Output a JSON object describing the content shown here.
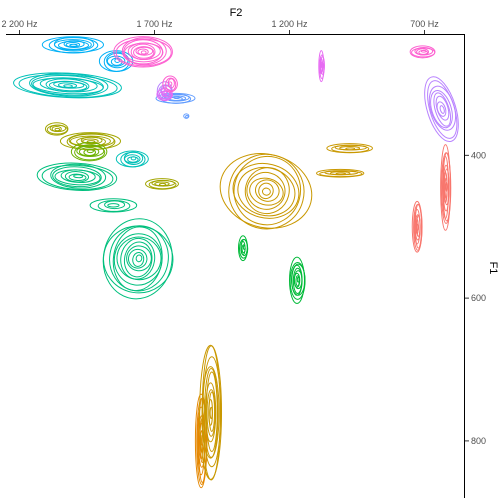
{
  "chart_data": {
    "type": "contour",
    "title": "",
    "x_axis": {
      "label": "F2",
      "position": "top",
      "reversed": true,
      "range": [
        2250,
        550
      ],
      "ticks": [
        {
          "value": 2200,
          "label": "2 200 Hz"
        },
        {
          "value": 1700,
          "label": "1 700 Hz"
        },
        {
          "value": 1200,
          "label": "1 200 Hz"
        },
        {
          "value": 700,
          "label": "700 Hz"
        }
      ]
    },
    "y_axis": {
      "label": "F1",
      "position": "right",
      "reversed": true,
      "range": [
        230,
        880
      ],
      "ticks": [
        {
          "value": 400,
          "label": "400"
        },
        {
          "value": 600,
          "label": "600"
        },
        {
          "value": 800,
          "label": "800"
        }
      ]
    },
    "grid": false,
    "legend": "none",
    "series": [
      {
        "color": "#F8766D",
        "clusters": [
          {
            "f2": 620,
            "f1": 445,
            "sx": 18,
            "sy": 60,
            "levels": 9,
            "rot": 0
          },
          {
            "f2": 725,
            "f1": 500,
            "sx": 17,
            "sy": 38,
            "levels": 8,
            "rot": 0
          }
        ]
      },
      {
        "color": "#E58700",
        "clusters": [
          {
            "f2": 1525,
            "f1": 800,
            "sx": 20,
            "sy": 70,
            "levels": 9,
            "rot": 0
          }
        ]
      },
      {
        "color": "#C99800",
        "clusters": [
          {
            "f2": 1285,
            "f1": 450,
            "sx": 160,
            "sy": 55,
            "levels": 11,
            "rot": 0.25
          },
          {
            "f2": 1490,
            "f1": 760,
            "sx": 40,
            "sy": 95,
            "levels": 11,
            "rot": 0
          },
          {
            "f2": 975,
            "f1": 390,
            "sx": 90,
            "sy": 6,
            "levels": 5,
            "rot": 0
          },
          {
            "f2": 1010,
            "f1": 425,
            "sx": 95,
            "sy": 5,
            "levels": 5,
            "rot": 0
          }
        ]
      },
      {
        "color": "#A3A500",
        "clusters": [
          {
            "f2": 1935,
            "f1": 380,
            "sx": 110,
            "sy": 12,
            "levels": 8,
            "rot": 0
          },
          {
            "f2": 1670,
            "f1": 440,
            "sx": 65,
            "sy": 7,
            "levels": 5,
            "rot": 0
          },
          {
            "f2": 2060,
            "f1": 363,
            "sx": 45,
            "sy": 8,
            "levels": 5,
            "rot": 0
          }
        ]
      },
      {
        "color": "#6BB100",
        "clusters": [
          {
            "f2": 1940,
            "f1": 395,
            "sx": 70,
            "sy": 12,
            "levels": 6,
            "rot": 0
          }
        ]
      },
      {
        "color": "#00BA38",
        "clusters": [
          {
            "f2": 1170,
            "f1": 575,
            "sx": 30,
            "sy": 30,
            "levels": 9,
            "rot": 0
          },
          {
            "f2": 1370,
            "f1": 530,
            "sx": 17,
            "sy": 17,
            "levels": 6,
            "rot": 0
          }
        ]
      },
      {
        "color": "#00BF7D",
        "clusters": [
          {
            "f2": 1760,
            "f1": 545,
            "sx": 130,
            "sy": 55,
            "levels": 12,
            "rot": 0.15
          },
          {
            "f2": 1985,
            "f1": 430,
            "sx": 140,
            "sy": 20,
            "levels": 9,
            "rot": 0.05
          },
          {
            "f2": 1850,
            "f1": 470,
            "sx": 80,
            "sy": 10,
            "levels": 4,
            "rot": 0
          }
        ]
      },
      {
        "color": "#00C0B8",
        "clusters": [
          {
            "f2": 2020,
            "f1": 302,
            "sx": 190,
            "sy": 18,
            "levels": 11,
            "rot": 0.05
          },
          {
            "f2": 1780,
            "f1": 405,
            "sx": 55,
            "sy": 12,
            "levels": 6,
            "rot": 0
          }
        ]
      },
      {
        "color": "#00B0F6",
        "clusters": [
          {
            "f2": 2000,
            "f1": 245,
            "sx": 105,
            "sy": 12,
            "levels": 8,
            "rot": 0
          },
          {
            "f2": 1840,
            "f1": 268,
            "sx": 60,
            "sy": 15,
            "levels": 6,
            "rot": 0
          }
        ]
      },
      {
        "color": "#619CFF",
        "clusters": [
          {
            "f2": 1620,
            "f1": 320,
            "sx": 70,
            "sy": 7,
            "levels": 6,
            "rot": 0
          },
          {
            "f2": 1580,
            "f1": 345,
            "sx": 10,
            "sy": 3,
            "levels": 2,
            "rot": 0
          }
        ]
      },
      {
        "color": "#B983FF",
        "clusters": [
          {
            "f2": 635,
            "f1": 335,
            "sx": 55,
            "sy": 45,
            "levels": 8,
            "rot": -0.3
          },
          {
            "f2": 1660,
            "f1": 310,
            "sx": 30,
            "sy": 12,
            "levels": 5,
            "rot": 0
          }
        ]
      },
      {
        "color": "#E76BF3",
        "clusters": [
          {
            "f2": 1080,
            "f1": 275,
            "sx": 10,
            "sy": 20,
            "levels": 6,
            "rot": 0
          },
          {
            "f2": 1660,
            "f1": 315,
            "sx": 30,
            "sy": 8,
            "levels": 4,
            "rot": 0
          }
        ]
      },
      {
        "color": "#FD61D1",
        "clusters": [
          {
            "f2": 705,
            "f1": 255,
            "sx": 48,
            "sy": 8,
            "levels": 6,
            "rot": 0
          },
          {
            "f2": 1740,
            "f1": 255,
            "sx": 105,
            "sy": 22,
            "levels": 11,
            "rot": 0
          },
          {
            "f2": 1640,
            "f1": 300,
            "sx": 25,
            "sy": 12,
            "levels": 4,
            "rot": 0
          }
        ]
      }
    ]
  }
}
